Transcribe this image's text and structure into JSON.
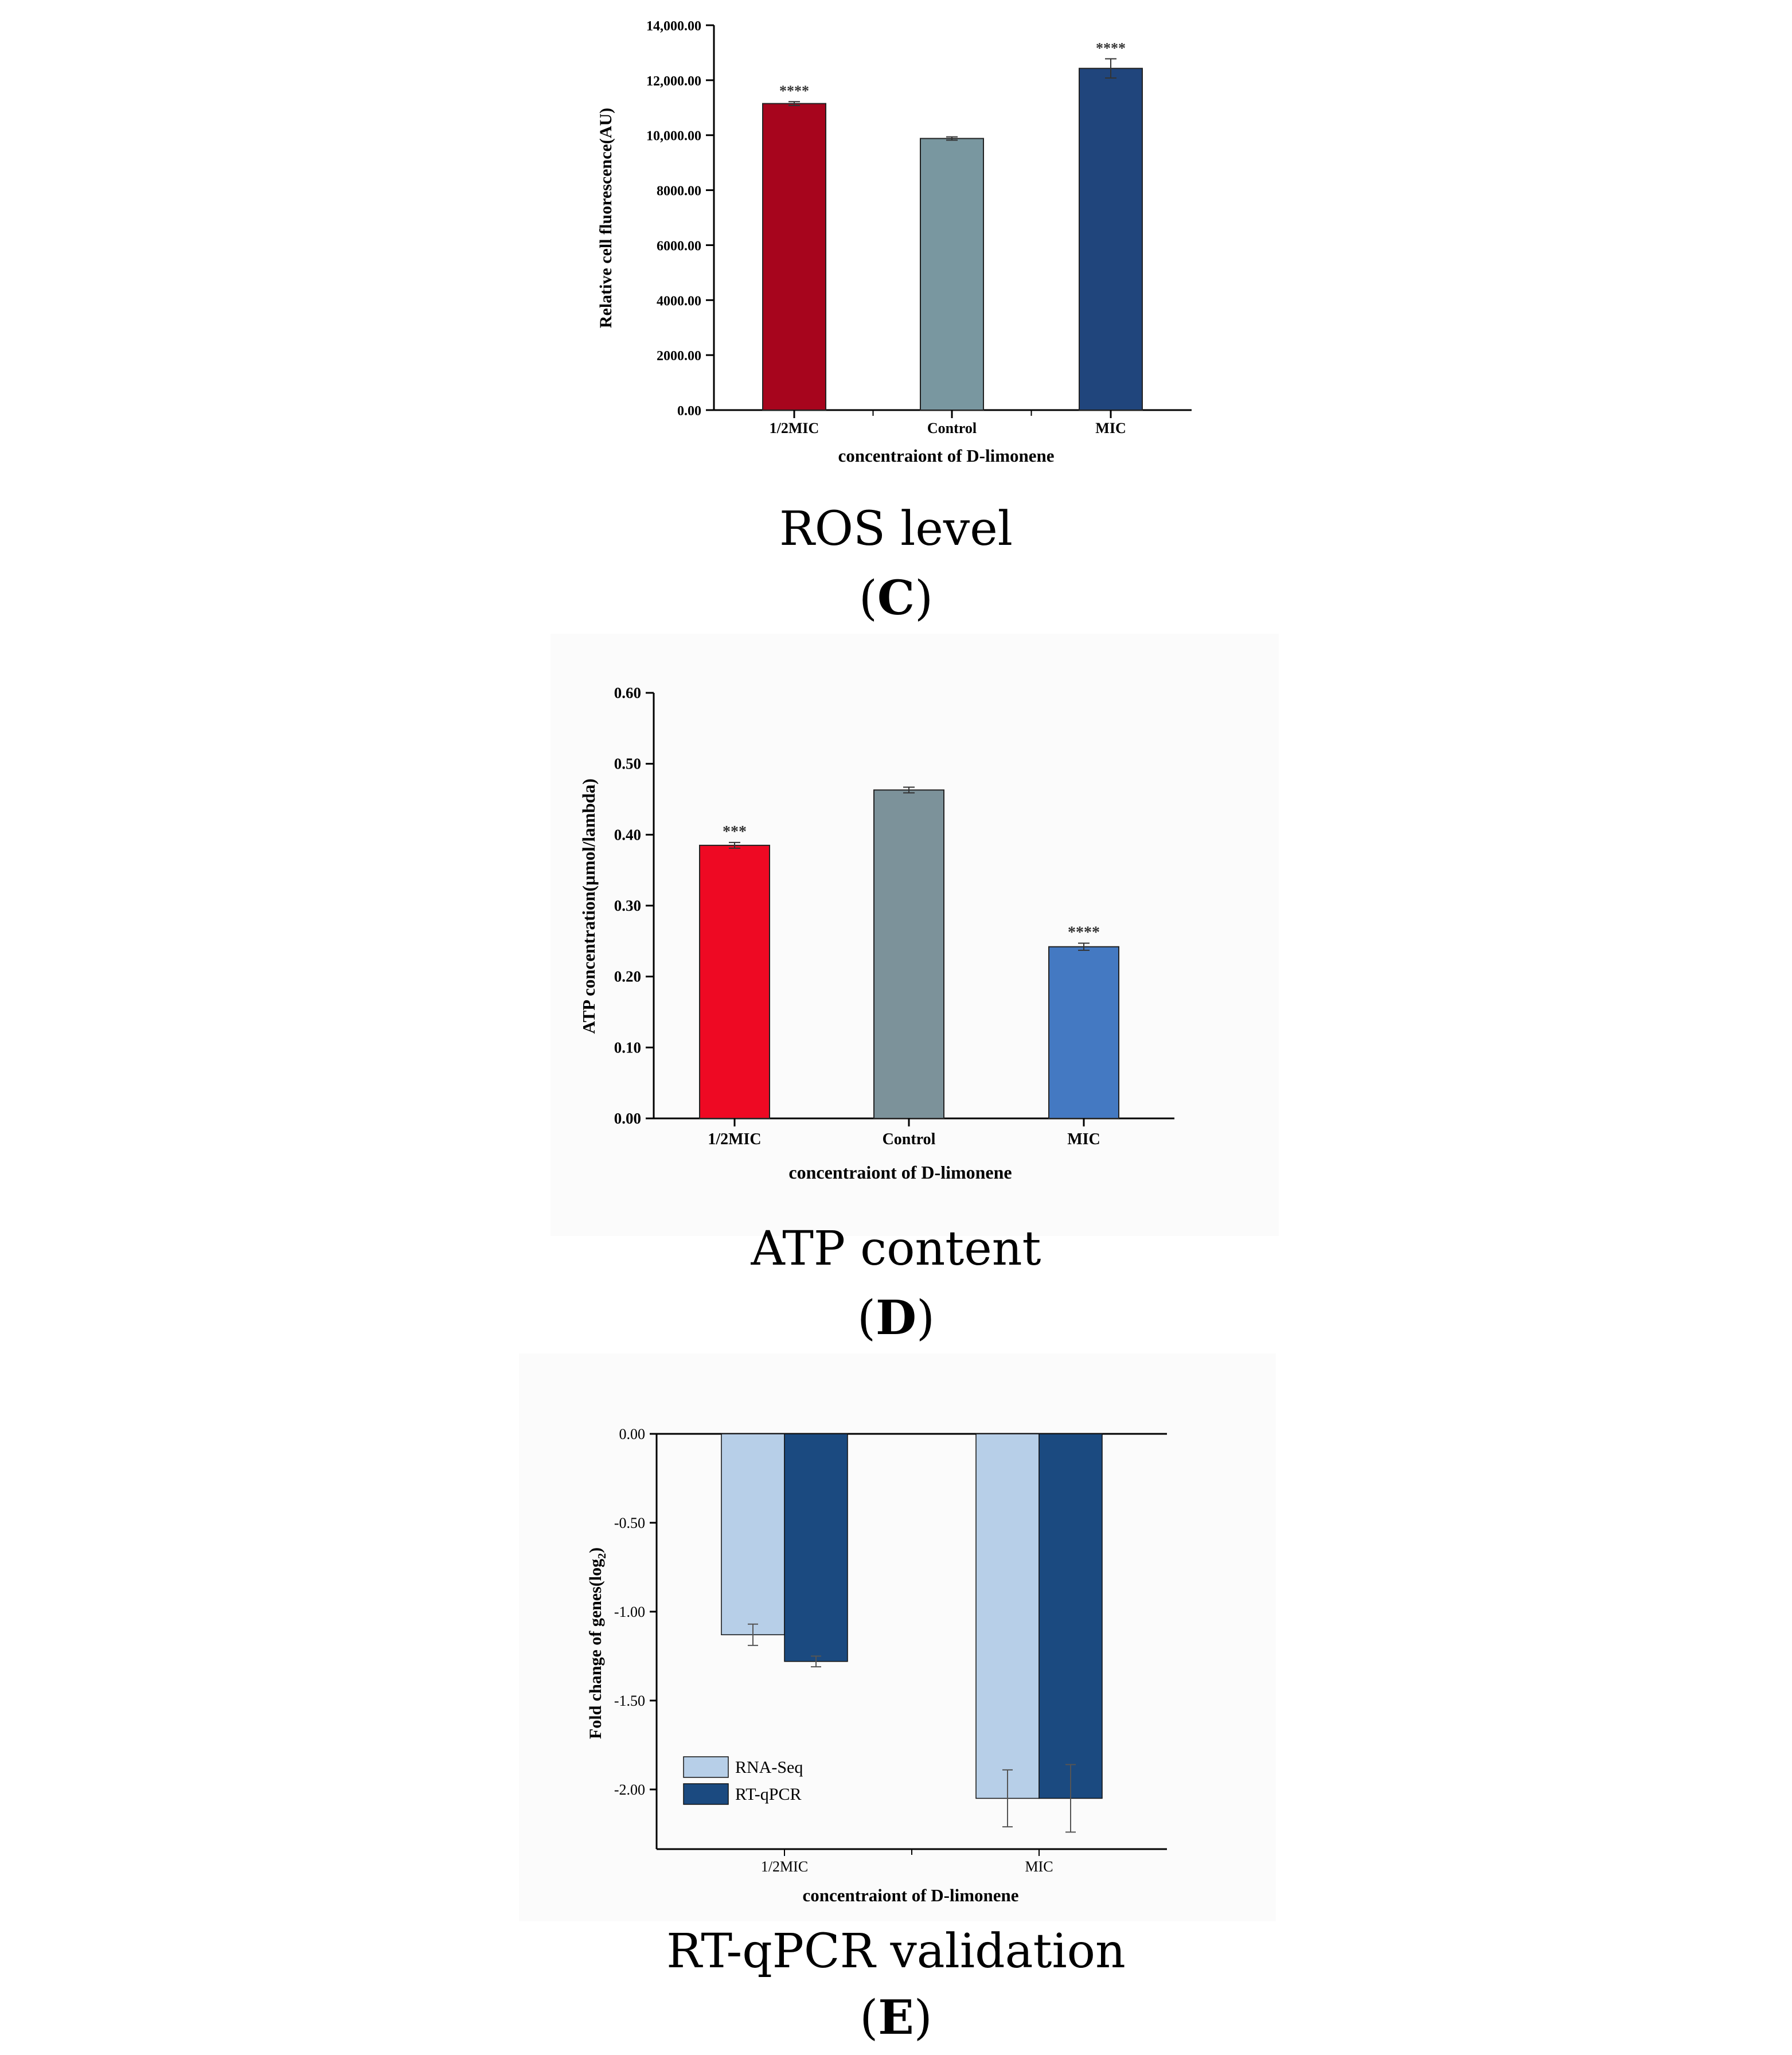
{
  "panels": [
    {
      "caption": "ROS level",
      "letter": "C",
      "open": "(",
      "close": ")"
    },
    {
      "caption": "ATP content",
      "letter": "D",
      "open": "(",
      "close": ")"
    },
    {
      "caption": "RT-qPCR validation",
      "letter": "E",
      "open": "(",
      "close": ")"
    }
  ],
  "chart_data": [
    {
      "type": "bar",
      "title": "",
      "xlabel": "concentraiont of D-limonene",
      "ylabel": "Relative cell fluorescence(AU)",
      "categories": [
        "1/2MIC",
        "Control",
        "MIC"
      ],
      "values": [
        11150,
        9880,
        12430
      ],
      "errors": [
        70,
        60,
        350
      ],
      "significance": [
        "****",
        "",
        "****"
      ],
      "colors": [
        "#a7051d",
        "#7997a0",
        "#20457c"
      ],
      "ylim": [
        0,
        14000
      ],
      "yticks": [
        0,
        2000,
        4000,
        6000,
        8000,
        10000,
        12000,
        14000
      ],
      "ytick_labels": [
        "0.00",
        "2000.00",
        "4000.00",
        "6000.00",
        "8000.00",
        "10,000.00",
        "12,000.00",
        "14,000.00"
      ]
    },
    {
      "type": "bar",
      "title": "",
      "xlabel": "concentraiont of D-limonene",
      "ylabel": "ATP concentration(µmol/lambda)",
      "categories": [
        "1/2MIC",
        "Control",
        "MIC"
      ],
      "values": [
        0.385,
        0.463,
        0.242
      ],
      "errors": [
        0.004,
        0.004,
        0.005
      ],
      "significance": [
        "***",
        "",
        "****"
      ],
      "colors": [
        "#ee0923",
        "#7c929a",
        "#4479c2"
      ],
      "ylim": [
        0,
        0.6
      ],
      "yticks": [
        0,
        0.1,
        0.2,
        0.3,
        0.4,
        0.5,
        0.6
      ],
      "ytick_labels": [
        "0.00",
        "0.10",
        "0.20",
        "0.30",
        "0.40",
        "0.50",
        "0.60"
      ]
    },
    {
      "type": "bar",
      "title": "",
      "xlabel": "concentraiont of D-limonene",
      "ylabel": "Fold change of genes(log",
      "ylabel_sub": "2",
      "ylabel_end": ")",
      "categories": [
        "1/2MIC",
        "MIC"
      ],
      "series": [
        {
          "name": "RNA-Seq",
          "values": [
            -1.13,
            -2.05
          ],
          "errors": [
            0.06,
            0.16
          ],
          "color": "#b7cfe8"
        },
        {
          "name": "RT-qPCR",
          "values": [
            -1.28,
            -2.05
          ],
          "errors": [
            0.03,
            0.19
          ],
          "color": "#1b4a80"
        }
      ],
      "ylim": [
        -2.3,
        0
      ],
      "yticks": [
        0,
        -0.5,
        -1.0,
        -1.5,
        -2.0
      ],
      "ytick_labels": [
        "0.00",
        "-0.50",
        "-1.00",
        "-1.50",
        "-2.00"
      ],
      "legend": "bottom-left"
    }
  ]
}
